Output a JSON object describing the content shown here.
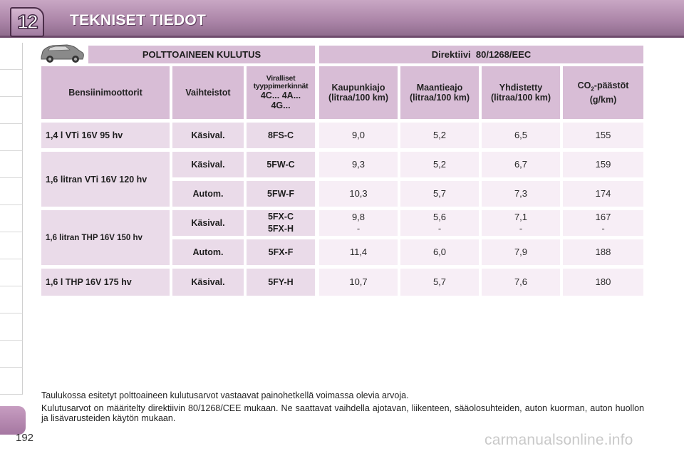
{
  "header": {
    "chapter_number": "12",
    "title": "TEKNISET TIEDOT"
  },
  "table": {
    "band_left": "POLTTOAINEEN KULUTUS",
    "band_right": "Direktiivi  80/1268/EEC",
    "columns": {
      "engine": "Bensiinimoottorit",
      "gearbox": "Vaihteistot",
      "type_line1": "Viralliset",
      "type_line2": "tyyppimerkinnät",
      "type_line3": "4C... 4A...",
      "type_line4": "4G...",
      "urban_line1": "Kaupunkiajo",
      "urban_line2": "(litraa/100 km)",
      "extra_line1": "Maantieajo",
      "extra_line2": "(litraa/100 km)",
      "combined_line1": "Yhdistetty",
      "combined_line2": "(litraa/100 km)",
      "co2_line1_pre": "CO",
      "co2_line1_sub": "2",
      "co2_line1_post": "-päästöt",
      "co2_line2": "(g/km)"
    },
    "rows": [
      {
        "engine": "1,4 l VTi 16V 95 hv",
        "gearbox": "Käsival.",
        "type": "8FS-C",
        "urban": "9,0",
        "extra": "5,2",
        "combined": "6,5",
        "co2": "155"
      },
      {
        "engine": "1,6 litran VTi 16V 120 hv",
        "gearbox": "Käsival.",
        "type": "5FW-C",
        "urban": "9,3",
        "extra": "5,2",
        "combined": "6,7",
        "co2": "159"
      },
      {
        "engine": "",
        "gearbox": "Autom.",
        "type": "5FW-F",
        "urban": "10,3",
        "extra": "5,7",
        "combined": "7,3",
        "co2": "174"
      },
      {
        "engine": "1,6 litran THP 16V 150 hv",
        "gearbox": "Käsival.",
        "type_a": "5FX-C",
        "type_b": "5FX-H",
        "urban_a": "9,8",
        "urban_b": "-",
        "extra_a": "5,6",
        "extra_b": "-",
        "combined_a": "7,1",
        "combined_b": "-",
        "co2_a": "167",
        "co2_b": "-"
      },
      {
        "engine": "",
        "gearbox": "Autom.",
        "type": "5FX-F",
        "urban": "11,4",
        "extra": "6,0",
        "combined": "7,9",
        "co2": "188"
      },
      {
        "engine": "1,6 l THP 16V 175 hv",
        "gearbox": "Käsival.",
        "type": "5FY-H",
        "urban": "10,7",
        "extra": "5,7",
        "combined": "7,6",
        "co2": "180"
      }
    ]
  },
  "notes": {
    "line1": "Taulukossa esitetyt polttoaineen kulutusarvot vastaavat painohetkellä voimassa olevia arvoja.",
    "line2": "Kulutusarvot on määritelty direktiivin 80/1268/CEE mukaan. Ne saattavat vaihdella ajotavan, liikenteen, sääolosuhteiden, auton kuorman, auton huollon ja lisävarusteiden käytön mukaan."
  },
  "footer": {
    "page_number": "192",
    "watermark": "carmanualsonline.info"
  },
  "colors": {
    "header_purple": "#a983a6",
    "header_cell": "#d8bdd6",
    "label_cell": "#eadbe9",
    "value_cell": "#f7eef6"
  },
  "icons": {
    "car": "car-icon"
  }
}
